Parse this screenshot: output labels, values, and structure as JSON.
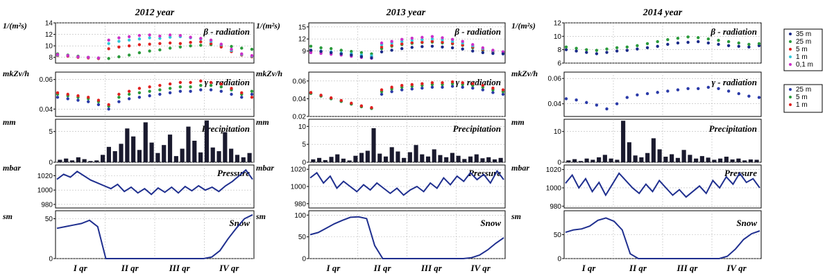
{
  "chart_data": [
    {
      "type": "scatter",
      "title": "2012 year",
      "x_categories": [
        "I qr",
        "II qr",
        "III qr",
        "IV qr"
      ],
      "beta": {
        "unit": "1/(m²s)",
        "label": "β - radiation",
        "ylim": [
          7,
          14
        ],
        "ticks": [
          8,
          10,
          12,
          14
        ],
        "series": [
          {
            "name": "25 m",
            "color": "#2a9a3a",
            "values": [
              8.6,
              8.4,
              8.2,
              8.0,
              7.8,
              7.8,
              8.1,
              8.4,
              8.8,
              9.1,
              9.3,
              9.6,
              9.8,
              10.0,
              10.1,
              10.2,
              10.1,
              9.9,
              9.6,
              9.4
            ]
          },
          {
            "name": "5 m",
            "color": "#e02020",
            "values": [
              8.3,
              8.2,
              8.0,
              7.9,
              7.8,
              9.5,
              9.8,
              10.0,
              10.2,
              10.3,
              10.4,
              10.5,
              10.4,
              10.6,
              10.7,
              10.4,
              9.8,
              9.0,
              8.4,
              8.1
            ]
          },
          {
            "name": "1 m",
            "color": "#30c8d8",
            "values": [
              8.4,
              8.3,
              8.1,
              8.0,
              7.9,
              10.4,
              10.8,
              11.0,
              11.2,
              11.4,
              11.3,
              11.5,
              11.6,
              11.4,
              11.2,
              10.8,
              10.2,
              9.2,
              8.5,
              8.2
            ]
          },
          {
            "name": "0,1 m",
            "color": "#cc30c8",
            "values": [
              8.5,
              8.3,
              8.1,
              8.0,
              7.9,
              11.0,
              11.4,
              11.6,
              11.8,
              11.9,
              11.7,
              11.9,
              11.8,
              11.5,
              11.3,
              11.0,
              10.3,
              9.4,
              8.6,
              8.3
            ]
          }
        ]
      },
      "gamma": {
        "unit": "mkZv/h",
        "label": "γ - radiation",
        "ylim": [
          0.035,
          0.065
        ],
        "ticks": [
          0.04,
          0.06
        ],
        "series": [
          {
            "name": "25 m",
            "color": "#2a3aa8",
            "values": [
              0.048,
              0.047,
              0.046,
              0.045,
              0.043,
              0.04,
              0.045,
              0.047,
              0.048,
              0.049,
              0.05,
              0.051,
              0.052,
              0.052,
              0.053,
              0.053,
              0.052,
              0.05,
              0.048,
              0.05
            ]
          },
          {
            "name": "5 m",
            "color": "#2a9a3a",
            "values": [
              0.05,
              0.049,
              0.048,
              0.047,
              0.045,
              0.042,
              0.048,
              0.05,
              0.051,
              0.052,
              0.053,
              0.054,
              0.055,
              0.055,
              0.056,
              0.056,
              0.055,
              0.053,
              0.05,
              0.052
            ]
          },
          {
            "name": "1 m",
            "color": "#e02020",
            "values": [
              0.051,
              0.05,
              0.049,
              0.048,
              0.046,
              0.043,
              0.05,
              0.052,
              0.054,
              0.055,
              0.056,
              0.057,
              0.058,
              0.058,
              0.059,
              0.058,
              0.057,
              0.054,
              0.051,
              0.048
            ]
          }
        ]
      },
      "precipitation": {
        "unit": "mm",
        "label": "Precipitation",
        "ylim": [
          0,
          7
        ],
        "ticks": [
          0,
          5
        ],
        "values": [
          0.4,
          0.6,
          0.3,
          0.8,
          0.5,
          0.2,
          0.3,
          1.2,
          2.5,
          1.8,
          3.0,
          5.5,
          4.2,
          2.0,
          6.5,
          3.2,
          1.5,
          2.8,
          4.5,
          1.0,
          2.2,
          5.8,
          3.5,
          1.6,
          6.8,
          2.4,
          1.8,
          4.9,
          2.2,
          1.2,
          0.8,
          1.5
        ]
      },
      "pressure": {
        "unit": "mbar",
        "label": "Pressure",
        "ylim": [
          975,
          1035
        ],
        "ticks": [
          980,
          1000,
          1020
        ],
        "values": [
          1015,
          1022,
          1018,
          1026,
          1020,
          1014,
          1010,
          1006,
          1002,
          1008,
          998,
          1004,
          996,
          1002,
          994,
          1003,
          997,
          1004,
          996,
          1005,
          999,
          1006,
          1000,
          1004,
          998,
          1006,
          1012,
          1020,
          1028,
          1015
        ]
      },
      "snow": {
        "unit": "sm",
        "label": "Snow",
        "ylim": [
          0,
          60
        ],
        "ticks": [
          0,
          50
        ],
        "values": [
          38,
          40,
          42,
          44,
          48,
          40,
          0,
          0,
          0,
          0,
          0,
          0,
          0,
          0,
          0,
          0,
          0,
          0,
          0,
          2,
          10,
          25,
          38,
          50,
          55
        ]
      }
    },
    {
      "type": "scatter",
      "title": "2013 year",
      "x_categories": [
        "I qr",
        "II qr",
        "III qr",
        "IV qr"
      ],
      "beta": {
        "unit": "1/(m²s)",
        "label": "β - radiation",
        "ylim": [
          6,
          16
        ],
        "ticks": [
          9,
          12,
          15
        ],
        "series": [
          {
            "name": "25 m",
            "color": "#2a9a3a",
            "values": [
              10.2,
              9.8,
              9.6,
              9.2,
              8.9,
              8.6,
              8.3,
              9.6,
              10.2,
              10.6,
              10.9,
              11.1,
              11.2,
              11.0,
              10.8,
              10.4,
              9.8,
              9.2,
              8.8,
              8.6
            ]
          },
          {
            "name": "5 m",
            "color": "#e02020",
            "values": [
              9.0,
              8.8,
              8.6,
              8.4,
              8.2,
              7.9,
              7.7,
              10.0,
              10.4,
              10.8,
              11.1,
              11.2,
              11.4,
              11.2,
              10.9,
              10.5,
              10.0,
              9.4,
              8.9,
              8.7
            ]
          },
          {
            "name": "1 m",
            "color": "#30c8d8",
            "values": [
              9.2,
              9.0,
              8.8,
              8.5,
              8.3,
              8.0,
              7.8,
              10.6,
              11.0,
              11.4,
              11.7,
              11.8,
              12.0,
              11.8,
              11.4,
              11.0,
              10.3,
              9.6,
              9.1,
              8.8
            ]
          },
          {
            "name": "0,1 m",
            "color": "#cc30c8",
            "values": [
              8.6,
              8.4,
              8.2,
              8.0,
              7.7,
              7.4,
              7.2,
              11.0,
              11.4,
              11.9,
              12.2,
              12.4,
              12.6,
              12.3,
              11.9,
              11.4,
              10.6,
              9.8,
              9.2,
              8.8
            ]
          },
          {
            "name": "35 m",
            "color": "#1a2a88",
            "values": [
              9.2,
              8.9,
              8.6,
              8.3,
              8.0,
              7.6,
              7.3,
              8.8,
              9.2,
              9.6,
              9.9,
              10.1,
              10.2,
              10.0,
              9.8,
              9.5,
              9.0,
              8.6,
              8.4,
              8.3
            ]
          }
        ]
      },
      "gamma": {
        "unit": "mkZv/h",
        "label": "γ - radiation",
        "ylim": [
          0.02,
          0.07
        ],
        "ticks": [
          0.02,
          0.04,
          0.06
        ],
        "series": [
          {
            "name": "25 m",
            "color": "#2a3aa8",
            "values": [
              0.046,
              0.043,
              0.04,
              0.037,
              0.034,
              0.031,
              0.029,
              0.045,
              0.048,
              0.05,
              0.051,
              0.052,
              0.053,
              0.053,
              0.054,
              0.053,
              0.052,
              0.05,
              0.047,
              0.045
            ]
          },
          {
            "name": "5 m",
            "color": "#2a9a3a",
            "values": [
              0.046,
              0.043,
              0.04,
              0.037,
              0.034,
              0.031,
              0.029,
              0.048,
              0.051,
              0.053,
              0.054,
              0.055,
              0.056,
              0.056,
              0.057,
              0.056,
              0.055,
              0.053,
              0.05,
              0.048
            ]
          },
          {
            "name": "1 m",
            "color": "#e02020",
            "values": [
              0.047,
              0.044,
              0.041,
              0.038,
              0.035,
              0.032,
              0.03,
              0.05,
              0.053,
              0.055,
              0.056,
              0.057,
              0.058,
              0.058,
              0.059,
              0.058,
              0.057,
              0.055,
              0.052,
              0.05
            ]
          }
        ]
      },
      "precipitation": {
        "unit": "mm",
        "label": "Precipitation",
        "ylim": [
          0,
          12
        ],
        "ticks": [
          0,
          5,
          10
        ],
        "values": [
          0.8,
          1.2,
          0.6,
          1.5,
          2.2,
          1.0,
          0.5,
          1.8,
          2.6,
          3.2,
          9.5,
          2.4,
          1.6,
          4.2,
          3.0,
          1.2,
          2.8,
          4.8,
          2.2,
          1.6,
          3.6,
          2.0,
          1.4,
          2.6,
          1.8,
          0.9,
          1.6,
          2.2,
          1.1,
          1.4,
          0.8,
          1.2
        ]
      },
      "pressure": {
        "unit": "mbar",
        "label": "Pressure",
        "ylim": [
          975,
          1025
        ],
        "ticks": [
          980,
          1000,
          1020
        ],
        "values": [
          1010,
          1016,
          1004,
          1012,
          998,
          1006,
          1000,
          994,
          1002,
          996,
          1004,
          998,
          992,
          998,
          990,
          996,
          1000,
          994,
          1004,
          998,
          1010,
          1002,
          1012,
          1006,
          1016,
          1008,
          1014,
          1004,
          1018,
          1008
        ]
      },
      "snow": {
        "unit": "sm",
        "label": "Snow",
        "ylim": [
          0,
          110
        ],
        "ticks": [
          0,
          50,
          100
        ],
        "values": [
          55,
          60,
          70,
          80,
          88,
          95,
          96,
          92,
          30,
          0,
          0,
          0,
          0,
          0,
          0,
          0,
          0,
          0,
          0,
          0,
          2,
          8,
          20,
          35,
          48
        ]
      }
    },
    {
      "type": "scatter",
      "title": "2014 year",
      "x_categories": [
        "I qr",
        "II qr",
        "III qr",
        "IV qr"
      ],
      "beta": {
        "unit": "1/(m²s)",
        "label": "β - radiation",
        "ylim": [
          6,
          12
        ],
        "ticks": [
          6,
          8,
          10,
          12
        ],
        "series": [
          {
            "name": "35 m",
            "color": "#1a2a88",
            "values": [
              8.0,
              7.8,
              7.6,
              7.4,
              7.6,
              7.8,
              7.9,
              8.1,
              8.3,
              8.5,
              8.8,
              9.0,
              9.1,
              9.2,
              9.0,
              8.8,
              8.6,
              8.5,
              8.4,
              8.6
            ]
          },
          {
            "name": "25 m",
            "color": "#2a9a3a",
            "values": [
              8.4,
              8.2,
              8.0,
              7.9,
              8.1,
              8.3,
              8.4,
              8.6,
              8.9,
              9.2,
              9.5,
              9.7,
              9.9,
              9.8,
              9.6,
              9.4,
              9.2,
              9.0,
              8.8,
              8.9
            ]
          }
        ]
      },
      "gamma": {
        "unit": "mkZv/h",
        "label": "γ - radiation",
        "ylim": [
          0.03,
          0.065
        ],
        "ticks": [
          0.04,
          0.06
        ],
        "series": [
          {
            "name": "25 m",
            "color": "#2a3aa8",
            "values": [
              0.044,
              0.043,
              0.041,
              0.039,
              0.036,
              0.04,
              0.045,
              0.047,
              0.048,
              0.049,
              0.05,
              0.051,
              0.052,
              0.052,
              0.053,
              0.052,
              0.05,
              0.048,
              0.046,
              0.045
            ]
          }
        ]
      },
      "precipitation": {
        "unit": "mm",
        "label": "Precipitation",
        "ylim": [
          0,
          14
        ],
        "ticks": [
          0,
          10
        ],
        "values": [
          0.6,
          1.0,
          0.4,
          1.2,
          0.8,
          1.6,
          2.4,
          1.2,
          0.8,
          13.5,
          6.5,
          2.2,
          1.6,
          3.0,
          7.8,
          4.2,
          1.8,
          2.6,
          1.4,
          4.0,
          2.4,
          1.2,
          2.0,
          1.5,
          0.8,
          1.2,
          1.8,
          0.9,
          1.2,
          0.6,
          0.9,
          0.8
        ]
      },
      "pressure": {
        "unit": "mbar",
        "label": "Pressure",
        "ylim": [
          978,
          1025
        ],
        "ticks": [
          980,
          1000,
          1020
        ],
        "values": [
          1005,
          1014,
          1000,
          1010,
          996,
          1006,
          992,
          1004,
          1016,
          1008,
          1000,
          994,
          1004,
          996,
          1008,
          1000,
          992,
          998,
          990,
          996,
          1002,
          994,
          1008,
          1000,
          1012,
          1004,
          1016,
          1006,
          1010,
          1000
        ]
      },
      "snow": {
        "unit": "sm",
        "label": "Snow",
        "ylim": [
          0,
          100
        ],
        "ticks": [
          0,
          50
        ],
        "values": [
          55,
          60,
          62,
          68,
          80,
          85,
          78,
          60,
          10,
          0,
          0,
          0,
          0,
          0,
          0,
          0,
          0,
          0,
          0,
          0,
          5,
          20,
          40,
          52,
          58
        ]
      }
    }
  ],
  "legend": {
    "beta": [
      {
        "name": "35 m",
        "color": "#1a2a88"
      },
      {
        "name": "25 m",
        "color": "#2a9a3a"
      },
      {
        "name": "5 m",
        "color": "#e02020"
      },
      {
        "name": "1 m",
        "color": "#30c8d8"
      },
      {
        "name": "0,1 m",
        "color": "#cc30c8"
      }
    ],
    "gamma": [
      {
        "name": "25 m",
        "color": "#2a3aa8"
      },
      {
        "name": "5 m",
        "color": "#2a9a3a"
      },
      {
        "name": "1 m",
        "color": "#e02020"
      }
    ]
  },
  "colors": {
    "line": "#1f2f8f",
    "bar": "#1a1a2e",
    "grid": "#b8b8b8"
  }
}
